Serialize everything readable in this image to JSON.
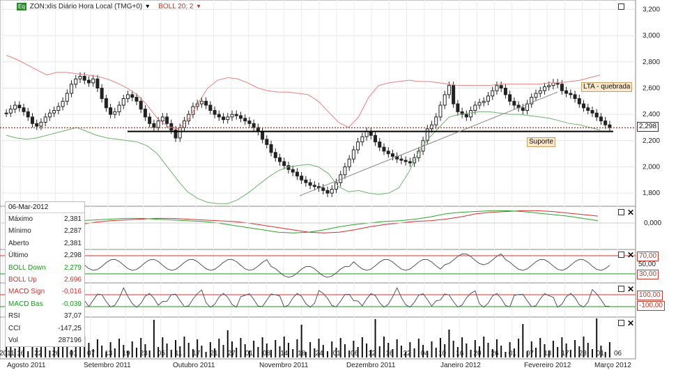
{
  "header": {
    "badge": "Eq",
    "title": "ZON:xlis Diário Hora Local (TMG+0)",
    "boll_label": "BOLL 20; 2"
  },
  "info": {
    "date": "06-Mar-2012",
    "rows": [
      {
        "label": "Máximo",
        "value": "2,381",
        "color": "#222"
      },
      {
        "label": "Mínimo",
        "value": "2,287",
        "color": "#222"
      },
      {
        "label": "Aberto",
        "value": "2,381",
        "color": "#222"
      },
      {
        "label": "Último",
        "value": "2,298",
        "color": "#222"
      },
      {
        "label": "BOLL Down",
        "value": "2,279",
        "color": "#1a9a1a"
      },
      {
        "label": "BOLL Up",
        "value": "2,696",
        "color": "#d03030"
      },
      {
        "label": "MACD Sign",
        "value": "-0,016",
        "color": "#d03030"
      },
      {
        "label": "MACD Bas",
        "value": "-0,039",
        "color": "#1a9a1a"
      },
      {
        "label": "RSI",
        "value": "37,07",
        "color": "#222"
      },
      {
        "label": "CCI",
        "value": "-147,25",
        "color": "#222"
      },
      {
        "label": "Vol",
        "value": "287196",
        "color": "#222"
      }
    ]
  },
  "annotations": {
    "lta": "LTA - quebrada",
    "suporte": "Suporte",
    "last_price": "2,298"
  },
  "indicator_tags": {
    "rsi_high": "70,00",
    "rsi_mid": "50,00",
    "rsi_low": "30,00",
    "cci_high": "100,00",
    "cci_low": "-100,00",
    "macd_zero": "0,000"
  },
  "colors": {
    "up": "#2e8b2e",
    "red": "#d03030",
    "green": "#1a9a1a",
    "candle": "#222",
    "price_line": "#c0392b"
  },
  "chart_data": {
    "type": "candlestick",
    "title": "ZON:xlis Diário Hora Local (TMG+0)",
    "y_ticks": [
      "1,800",
      "2,000",
      "2,200",
      "2,400",
      "2,600",
      "2,800",
      "3,000",
      "3,200"
    ],
    "ylim": [
      1.7,
      3.25
    ],
    "x_ticks": [
      "2011",
      "16",
      "22",
      "26",
      "01",
      "07",
      "13",
      "19",
      "23",
      "05",
      "11",
      "17",
      "21",
      "27",
      "01",
      "08",
      "14",
      "18",
      "24",
      "01",
      "06",
      "12",
      "16",
      "22",
      "04",
      "10",
      "16",
      "20",
      "26",
      "01",
      "07",
      "13",
      "17",
      "23",
      "01",
      "06"
    ],
    "month_labels": [
      "Agosto 2011",
      "Setembro 2011",
      "Outubro 2011",
      "Novembro 2011",
      "Dezembro 2011",
      "Janeiro 2012",
      "Fevereiro 2012",
      "Março 2012"
    ],
    "closes": [
      2.41,
      2.44,
      2.47,
      2.45,
      2.42,
      2.38,
      2.33,
      2.31,
      2.34,
      2.38,
      2.41,
      2.43,
      2.46,
      2.5,
      2.56,
      2.63,
      2.67,
      2.69,
      2.66,
      2.64,
      2.67,
      2.6,
      2.52,
      2.45,
      2.4,
      2.42,
      2.47,
      2.52,
      2.55,
      2.53,
      2.5,
      2.44,
      2.38,
      2.33,
      2.3,
      2.35,
      2.38,
      2.33,
      2.28,
      2.22,
      2.3,
      2.35,
      2.4,
      2.46,
      2.48,
      2.5,
      2.47,
      2.43,
      2.4,
      2.38,
      2.36,
      2.38,
      2.4,
      2.39,
      2.37,
      2.35,
      2.33,
      2.3,
      2.27,
      2.21,
      2.17,
      2.11,
      2.07,
      2.04,
      2.01,
      1.98,
      1.96,
      1.93,
      1.9,
      1.88,
      1.86,
      1.85,
      1.84,
      1.82,
      1.8,
      1.83,
      1.88,
      1.94,
      2.0,
      2.06,
      2.13,
      2.19,
      2.23,
      2.27,
      2.24,
      2.19,
      2.15,
      2.12,
      2.1,
      2.08,
      2.06,
      2.05,
      2.04,
      2.03,
      2.07,
      2.12,
      2.2,
      2.29,
      2.32,
      2.38,
      2.47,
      2.55,
      2.62,
      2.48,
      2.42,
      2.4,
      2.38,
      2.43,
      2.47,
      2.49,
      2.5,
      2.54,
      2.58,
      2.62,
      2.6,
      2.55,
      2.5,
      2.47,
      2.45,
      2.43,
      2.48,
      2.53,
      2.56,
      2.58,
      2.61,
      2.62,
      2.64,
      2.63,
      2.58,
      2.56,
      2.55,
      2.52,
      2.48,
      2.45,
      2.43,
      2.41,
      2.38,
      2.35,
      2.32,
      2.3
    ],
    "boll_upper": [
      2.85,
      2.82,
      2.78,
      2.74,
      2.7,
      2.72,
      2.72,
      2.71,
      2.7,
      2.69,
      2.67,
      2.64,
      2.6,
      2.55,
      2.47,
      2.37,
      2.31,
      2.29,
      2.35,
      2.48,
      2.6,
      2.66,
      2.68,
      2.67,
      2.64,
      2.6,
      2.58,
      2.57,
      2.57,
      2.56,
      2.55,
      2.5,
      2.42,
      2.34,
      2.3,
      2.38,
      2.53,
      2.62,
      2.64,
      2.65,
      2.66,
      2.65,
      2.65,
      2.64,
      2.63,
      2.62,
      2.62,
      2.62,
      2.62,
      2.63,
      2.63,
      2.63,
      2.63,
      2.63,
      2.64,
      2.64,
      2.65,
      2.66,
      2.68,
      2.7
    ],
    "boll_lower": [
      2.24,
      2.22,
      2.21,
      2.22,
      2.24,
      2.26,
      2.28,
      2.3,
      2.27,
      2.24,
      2.22,
      2.21,
      2.2,
      2.19,
      2.16,
      2.1,
      2.0,
      1.9,
      1.81,
      1.76,
      1.73,
      1.72,
      1.72,
      1.75,
      1.8,
      1.86,
      1.92,
      1.97,
      2.0,
      2.01,
      2.02,
      2.0,
      1.95,
      1.85,
      1.81,
      1.82,
      1.8,
      1.79,
      1.8,
      1.84,
      1.96,
      2.12,
      2.22,
      2.3,
      2.38,
      2.4,
      2.41,
      2.42,
      2.42,
      2.41,
      2.4,
      2.4,
      2.39,
      2.38,
      2.37,
      2.35,
      2.33,
      2.32,
      2.3,
      2.28
    ],
    "macd_label": "MACD",
    "rsi_label": "RSI",
    "cci_label": "CCI",
    "volume_label": "Vol"
  }
}
